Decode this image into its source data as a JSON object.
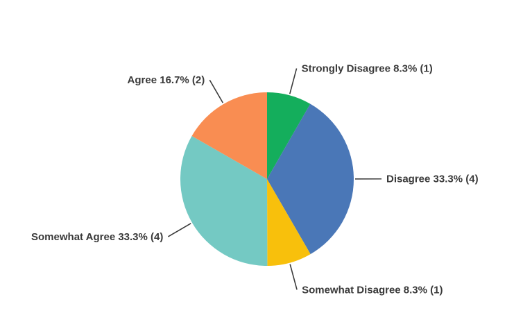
{
  "chart_data": {
    "type": "pie",
    "title": "",
    "direction": "clockwise",
    "start_angle_deg": 0,
    "legend_position": "none",
    "label_style": "outside-with-leader-lines",
    "background": "#ffffff",
    "label_color": "#3A3A3A",
    "leader_line_color": "#3A3A3A",
    "slices": [
      {
        "label": "Strongly Disagree",
        "percent": 8.3,
        "count": 1,
        "display": "Strongly Disagree 8.3% (1)",
        "color": "#14AE5C"
      },
      {
        "label": "Disagree",
        "percent": 33.3,
        "count": 4,
        "display": "Disagree 33.3% (4)",
        "color": "#4A77B7"
      },
      {
        "label": "Somewhat Disagree",
        "percent": 8.3,
        "count": 1,
        "display": "Somewhat Disagree 8.3% (1)",
        "color": "#F8C00C"
      },
      {
        "label": "Somewhat Agree",
        "percent": 33.3,
        "count": 4,
        "display": "Somewhat Agree 33.3% (4)",
        "color": "#74C9C3"
      },
      {
        "label": "Agree",
        "percent": 16.7,
        "count": 2,
        "display": "Agree 16.7% (2)",
        "color": "#F98D52"
      }
    ]
  }
}
